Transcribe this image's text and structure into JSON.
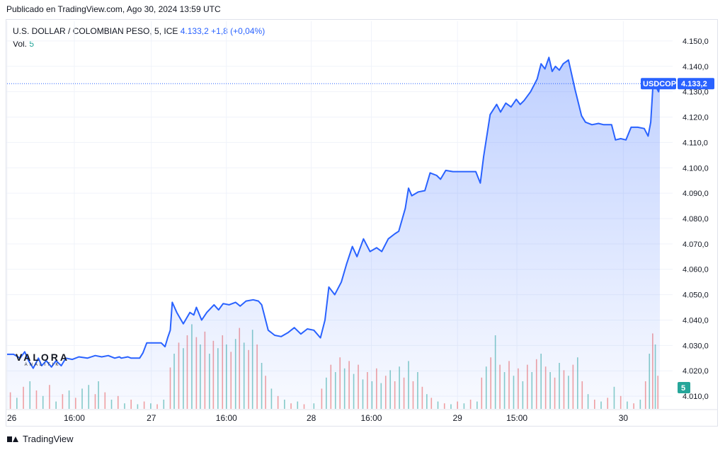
{
  "header": {
    "published": "Publicado en TradingView.com, Ago 30, 2024 13:59 UTC"
  },
  "legend": {
    "symbol": "U.S. DOLLAR / COLOMBIAN PESO, 5, ICE",
    "last": "4.133,2",
    "change": "+1,8 (+0,04%)",
    "vol_label": "Vol.",
    "vol_value": "5"
  },
  "price_tag": {
    "symbol": "USDCOP",
    "value": "4.133,2",
    "level": 4133.2
  },
  "vol_tag": "5",
  "watermark": {
    "title": "VALORA",
    "sub": "ANALITIK"
  },
  "footer": {
    "brand": "TradingView"
  },
  "colors": {
    "line": "#2962ff",
    "up_volume": "#26a69a",
    "down_volume": "#ef5350",
    "tag_bg": "#2962ff"
  },
  "chart_data": {
    "type": "area",
    "y_axis": {
      "min": 4005,
      "max": 4155,
      "ticks": [
        {
          "value": 4010,
          "label": "4.010,0"
        },
        {
          "value": 4020,
          "label": "4.020,0"
        },
        {
          "value": 4030,
          "label": "4.030,0"
        },
        {
          "value": 4040,
          "label": "4.040,0"
        },
        {
          "value": 4050,
          "label": "4.050,0"
        },
        {
          "value": 4060,
          "label": "4.060,0"
        },
        {
          "value": 4070,
          "label": "4.070,0"
        },
        {
          "value": 4080,
          "label": "4.080,0"
        },
        {
          "value": 4090,
          "label": "4.090,0"
        },
        {
          "value": 4100,
          "label": "4.100,0"
        },
        {
          "value": 4110,
          "label": "4.110,0"
        },
        {
          "value": 4120,
          "label": "4.120,0"
        },
        {
          "value": 4130,
          "label": "4.130,0"
        },
        {
          "value": 4140,
          "label": "4.140,0"
        },
        {
          "value": 4150,
          "label": "4.150,0"
        }
      ]
    },
    "x_axis": {
      "min": 0,
      "max": 100,
      "ticks": [
        {
          "t": 0,
          "label": "26"
        },
        {
          "t": 10.3,
          "label": "16:00"
        },
        {
          "t": 22.1,
          "label": "27"
        },
        {
          "t": 33.6,
          "label": "16:00"
        },
        {
          "t": 46.6,
          "label": "28"
        },
        {
          "t": 55.8,
          "label": "16:00"
        },
        {
          "t": 69.0,
          "label": "29"
        },
        {
          "t": 78.1,
          "label": "15:00"
        },
        {
          "t": 94.4,
          "label": "30"
        }
      ]
    },
    "series": [
      {
        "points": [
          [
            0,
            4026.5
          ],
          [
            1.0,
            4026.5
          ],
          [
            2.0,
            4025.0
          ],
          [
            2.7,
            4027.5
          ],
          [
            3.3,
            4024.0
          ],
          [
            4.0,
            4021.0
          ],
          [
            4.8,
            4025.0
          ],
          [
            5.3,
            4022.0
          ],
          [
            6.0,
            4024.0
          ],
          [
            6.8,
            4021.5
          ],
          [
            7.5,
            4024.0
          ],
          [
            8.3,
            4022.0
          ],
          [
            9.0,
            4025.0
          ],
          [
            10.0,
            4024.5
          ],
          [
            11.0,
            4025.5
          ],
          [
            12.3,
            4025.0
          ],
          [
            13.5,
            4026.0
          ],
          [
            14.5,
            4025.5
          ],
          [
            15.5,
            4026.0
          ],
          [
            16.5,
            4025.0
          ],
          [
            17.2,
            4025.5
          ],
          [
            17.5,
            4025.0
          ],
          [
            18.5,
            4025.5
          ],
          [
            19.0,
            4025.0
          ],
          [
            20.3,
            4025.0
          ],
          [
            20.8,
            4027.0
          ],
          [
            21.4,
            4031.0
          ],
          [
            22.5,
            4031.0
          ],
          [
            23.6,
            4031.0
          ],
          [
            24.2,
            4029.5
          ],
          [
            24.6,
            4033.0
          ],
          [
            25.0,
            4036.0
          ],
          [
            25.3,
            4047.0
          ],
          [
            26.0,
            4043.0
          ],
          [
            27.0,
            4038.5
          ],
          [
            28.0,
            4043.0
          ],
          [
            28.6,
            4042.0
          ],
          [
            29.0,
            4045.0
          ],
          [
            29.8,
            4040.0
          ],
          [
            30.6,
            4043.0
          ],
          [
            31.7,
            4046.0
          ],
          [
            32.4,
            4044.0
          ],
          [
            33.1,
            4046.5
          ],
          [
            34.0,
            4046.0
          ],
          [
            35.0,
            4047.0
          ],
          [
            35.7,
            4045.5
          ],
          [
            36.6,
            4047.5
          ],
          [
            37.7,
            4048.0
          ],
          [
            38.5,
            4047.5
          ],
          [
            39.0,
            4046.0
          ],
          [
            40.0,
            4036.0
          ],
          [
            41.0,
            4034.0
          ],
          [
            42.0,
            4033.5
          ],
          [
            43.0,
            4035.0
          ],
          [
            44.0,
            4037.0
          ],
          [
            45.0,
            4034.5
          ],
          [
            46.0,
            4036.5
          ],
          [
            47.0,
            4036.0
          ],
          [
            48.0,
            4033.0
          ],
          [
            48.7,
            4040.0
          ],
          [
            49.3,
            4053.0
          ],
          [
            50.2,
            4050.0
          ],
          [
            51.2,
            4055.0
          ],
          [
            52.0,
            4062.0
          ],
          [
            52.9,
            4069.0
          ],
          [
            53.6,
            4065.0
          ],
          [
            54.6,
            4072.0
          ],
          [
            55.6,
            4067.0
          ],
          [
            56.6,
            4068.5
          ],
          [
            57.4,
            4067.0
          ],
          [
            58.4,
            4072.0
          ],
          [
            59.4,
            4074.0
          ],
          [
            60.0,
            4075.0
          ],
          [
            61.0,
            4084.0
          ],
          [
            61.5,
            4092.0
          ],
          [
            62.0,
            4089.0
          ],
          [
            63.0,
            4090.5
          ],
          [
            64.0,
            4091.0
          ],
          [
            64.8,
            4098.0
          ],
          [
            65.8,
            4097.0
          ],
          [
            66.4,
            4095.5
          ],
          [
            67.2,
            4099.0
          ],
          [
            68.3,
            4098.5
          ],
          [
            69.5,
            4098.5
          ],
          [
            70.5,
            4098.5
          ],
          [
            71.8,
            4098.5
          ],
          [
            72.5,
            4094.0
          ],
          [
            73.0,
            4104.5
          ],
          [
            74.0,
            4121.0
          ],
          [
            75.0,
            4125.0
          ],
          [
            75.6,
            4122.0
          ],
          [
            76.4,
            4125.5
          ],
          [
            77.2,
            4124.0
          ],
          [
            78.0,
            4127.0
          ],
          [
            78.6,
            4125.0
          ],
          [
            79.2,
            4126.5
          ],
          [
            80.2,
            4130.0
          ],
          [
            81.2,
            4135.0
          ],
          [
            81.8,
            4141.0
          ],
          [
            82.4,
            4139.0
          ],
          [
            83.0,
            4143.5
          ],
          [
            83.5,
            4138.0
          ],
          [
            84.0,
            4140.0
          ],
          [
            84.6,
            4138.5
          ],
          [
            85.2,
            4141.0
          ],
          [
            86.0,
            4142.5
          ],
          [
            87.0,
            4131.0
          ],
          [
            88.0,
            4120.5
          ],
          [
            88.6,
            4118.0
          ],
          [
            89.6,
            4117.0
          ],
          [
            90.6,
            4117.5
          ],
          [
            91.4,
            4117.0
          ],
          [
            92.6,
            4117.0
          ],
          [
            93.2,
            4111.0
          ],
          [
            94.0,
            4111.5
          ],
          [
            94.8,
            4111.0
          ],
          [
            95.6,
            4116.0
          ],
          [
            96.6,
            4116.0
          ],
          [
            97.6,
            4115.5
          ],
          [
            98.2,
            4112.5
          ],
          [
            98.6,
            4118.0
          ],
          [
            99.0,
            4135.0
          ],
          [
            99.4,
            4132.0
          ],
          [
            99.8,
            4130.0
          ],
          [
            100,
            4133.2
          ]
        ]
      }
    ],
    "volume": {
      "max": 100,
      "bars": [
        [
          0.5,
          18,
          "d"
        ],
        [
          1.5,
          12,
          "u"
        ],
        [
          2.5,
          24,
          "d"
        ],
        [
          3.5,
          30,
          "u"
        ],
        [
          4.5,
          20,
          "d"
        ],
        [
          5.5,
          14,
          "u"
        ],
        [
          6.5,
          26,
          "d"
        ],
        [
          7.5,
          8,
          "u"
        ],
        [
          8.5,
          16,
          "d"
        ],
        [
          9.5,
          20,
          "u"
        ],
        [
          10.5,
          12,
          "d"
        ],
        [
          11.5,
          22,
          "u"
        ],
        [
          12.5,
          26,
          "u"
        ],
        [
          13.5,
          16,
          "d"
        ],
        [
          14.0,
          30,
          "u"
        ],
        [
          15.0,
          18,
          "d"
        ],
        [
          16.0,
          10,
          "u"
        ],
        [
          17.0,
          14,
          "d"
        ],
        [
          18.0,
          6,
          "u"
        ],
        [
          19.0,
          10,
          "d"
        ],
        [
          20.0,
          5,
          "u"
        ],
        [
          21.0,
          8,
          "d"
        ],
        [
          22.0,
          6,
          "u"
        ],
        [
          23.0,
          5,
          "d"
        ],
        [
          24.0,
          10,
          "u"
        ],
        [
          25.0,
          45,
          "d"
        ],
        [
          25.6,
          60,
          "u"
        ],
        [
          26.3,
          72,
          "d"
        ],
        [
          27.0,
          66,
          "u"
        ],
        [
          27.6,
          80,
          "d"
        ],
        [
          28.3,
          92,
          "u"
        ],
        [
          29.0,
          78,
          "d"
        ],
        [
          29.6,
          70,
          "u"
        ],
        [
          30.3,
          84,
          "d"
        ],
        [
          31.0,
          60,
          "u"
        ],
        [
          31.6,
          74,
          "d"
        ],
        [
          32.3,
          66,
          "u"
        ],
        [
          33.0,
          80,
          "d"
        ],
        [
          33.6,
          70,
          "u"
        ],
        [
          34.3,
          62,
          "d"
        ],
        [
          35.0,
          76,
          "u"
        ],
        [
          35.6,
          88,
          "d"
        ],
        [
          36.3,
          72,
          "u"
        ],
        [
          37.0,
          64,
          "d"
        ],
        [
          37.6,
          86,
          "u"
        ],
        [
          38.3,
          70,
          "d"
        ],
        [
          39.0,
          50,
          "u"
        ],
        [
          39.6,
          36,
          "d"
        ],
        [
          40.5,
          22,
          "u"
        ],
        [
          41.5,
          14,
          "d"
        ],
        [
          42.5,
          10,
          "u"
        ],
        [
          43.5,
          6,
          "d"
        ],
        [
          44.5,
          8,
          "u"
        ],
        [
          45.5,
          5,
          "d"
        ],
        [
          47.0,
          6,
          "u"
        ],
        [
          48.2,
          22,
          "d"
        ],
        [
          48.9,
          34,
          "u"
        ],
        [
          49.6,
          48,
          "d"
        ],
        [
          50.3,
          40,
          "u"
        ],
        [
          51.0,
          56,
          "d"
        ],
        [
          51.7,
          44,
          "u"
        ],
        [
          52.4,
          52,
          "d"
        ],
        [
          53.1,
          38,
          "u"
        ],
        [
          53.8,
          48,
          "d"
        ],
        [
          54.5,
          32,
          "u"
        ],
        [
          55.2,
          40,
          "d"
        ],
        [
          55.9,
          30,
          "u"
        ],
        [
          56.6,
          44,
          "d"
        ],
        [
          57.3,
          28,
          "u"
        ],
        [
          58.0,
          36,
          "d"
        ],
        [
          58.7,
          42,
          "u"
        ],
        [
          59.4,
          30,
          "d"
        ],
        [
          60.1,
          46,
          "u"
        ],
        [
          60.8,
          34,
          "d"
        ],
        [
          61.5,
          52,
          "u"
        ],
        [
          62.2,
          30,
          "d"
        ],
        [
          62.9,
          40,
          "u"
        ],
        [
          63.6,
          24,
          "d"
        ],
        [
          64.3,
          16,
          "u"
        ],
        [
          65.0,
          12,
          "d"
        ],
        [
          66.0,
          8,
          "u"
        ],
        [
          67.0,
          6,
          "d"
        ],
        [
          68.0,
          5,
          "u"
        ],
        [
          69.0,
          8,
          "d"
        ],
        [
          70.0,
          6,
          "u"
        ],
        [
          71.0,
          10,
          "d"
        ],
        [
          72.0,
          8,
          "u"
        ],
        [
          72.7,
          34,
          "d"
        ],
        [
          73.4,
          46,
          "u"
        ],
        [
          74.1,
          56,
          "d"
        ],
        [
          74.8,
          80,
          "u"
        ],
        [
          75.5,
          48,
          "d"
        ],
        [
          76.2,
          40,
          "u"
        ],
        [
          76.9,
          52,
          "d"
        ],
        [
          77.6,
          36,
          "u"
        ],
        [
          78.3,
          44,
          "d"
        ],
        [
          79.0,
          30,
          "u"
        ],
        [
          79.7,
          48,
          "d"
        ],
        [
          80.4,
          40,
          "u"
        ],
        [
          81.1,
          54,
          "d"
        ],
        [
          81.8,
          60,
          "u"
        ],
        [
          82.5,
          46,
          "d"
        ],
        [
          83.2,
          40,
          "u"
        ],
        [
          83.9,
          34,
          "d"
        ],
        [
          84.6,
          50,
          "u"
        ],
        [
          85.3,
          42,
          "d"
        ],
        [
          86.0,
          36,
          "u"
        ],
        [
          86.7,
          48,
          "d"
        ],
        [
          87.4,
          56,
          "u"
        ],
        [
          88.1,
          30,
          "d"
        ],
        [
          89.0,
          16,
          "u"
        ],
        [
          90.0,
          10,
          "d"
        ],
        [
          91.0,
          8,
          "u"
        ],
        [
          92.0,
          12,
          "d"
        ],
        [
          93.0,
          24,
          "u"
        ],
        [
          94.0,
          14,
          "d"
        ],
        [
          95.0,
          8,
          "u"
        ],
        [
          96.0,
          6,
          "d"
        ],
        [
          97.0,
          10,
          "u"
        ],
        [
          97.8,
          30,
          "d"
        ],
        [
          98.4,
          60,
          "u"
        ],
        [
          98.9,
          82,
          "d"
        ],
        [
          99.3,
          70,
          "u"
        ],
        [
          99.7,
          36,
          "d"
        ]
      ]
    }
  }
}
